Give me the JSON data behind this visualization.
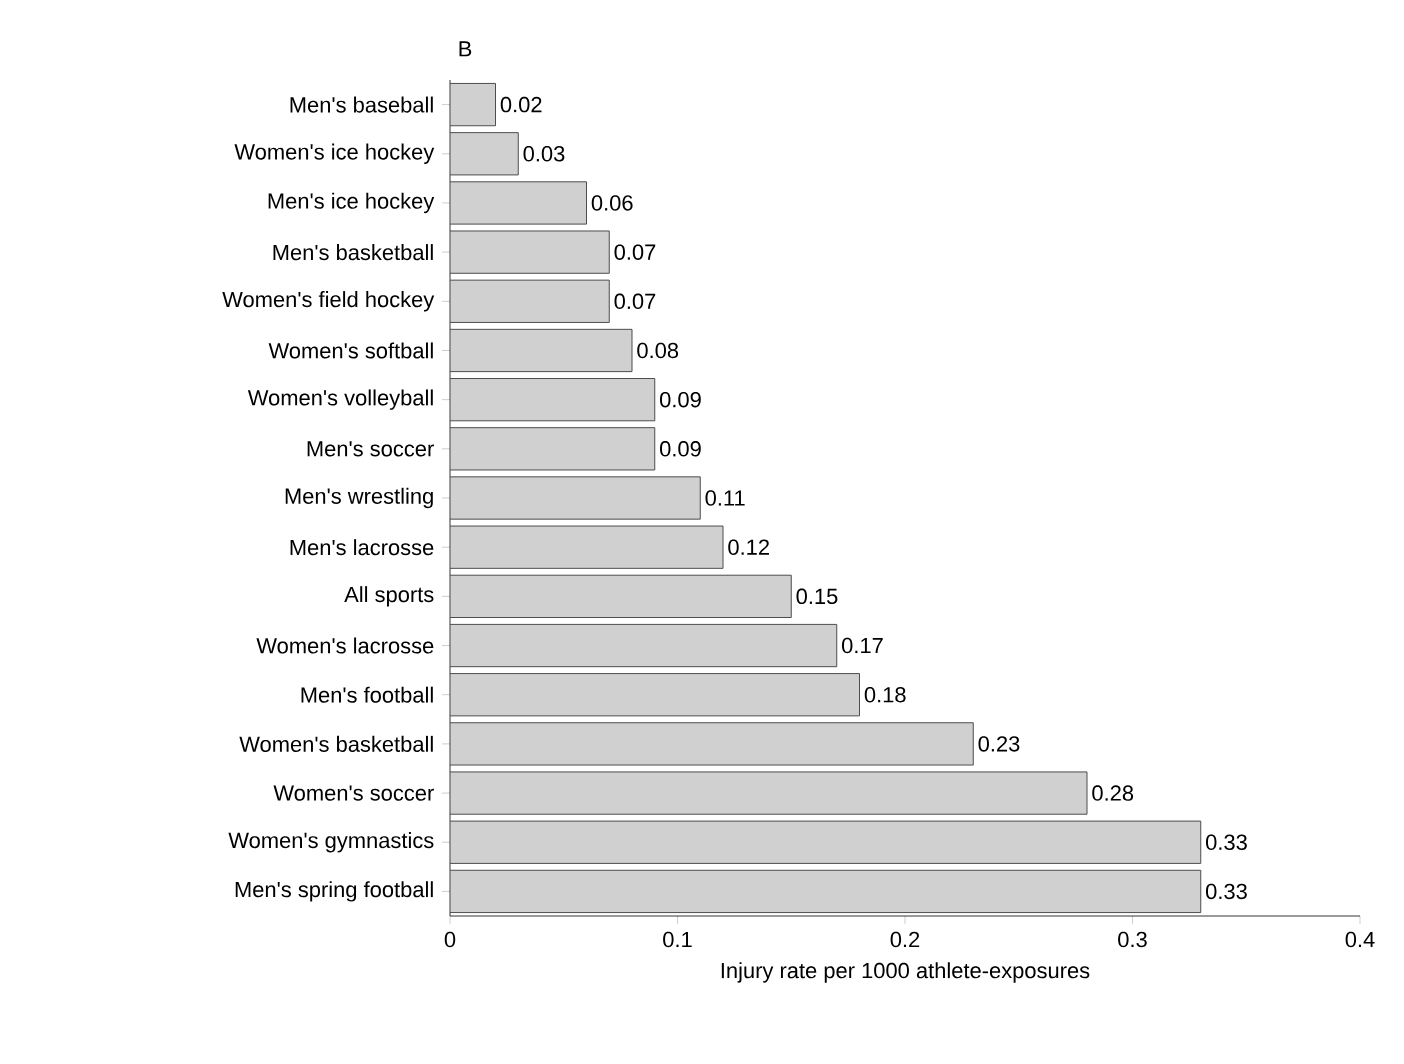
{
  "chart_data": {
    "type": "bar",
    "orientation": "horizontal",
    "title": "B",
    "categories": [
      "Men's baseball",
      "Women's ice hockey",
      "Men's ice hockey",
      "Men's basketball",
      "Women's field hockey",
      "Women's softball",
      "Women's volleyball",
      "Men's soccer",
      "Men's wrestling",
      "Men's lacrosse",
      "All sports",
      "Women's lacrosse",
      "Men's football",
      "Women's basketball",
      "Women's soccer",
      "Women's gymnastics",
      "Men's spring football"
    ],
    "values": [
      0.02,
      0.03,
      0.06,
      0.07,
      0.07,
      0.08,
      0.09,
      0.09,
      0.11,
      0.12,
      0.15,
      0.17,
      0.18,
      0.23,
      0.28,
      0.33,
      0.33
    ],
    "color": "#d0d0d0",
    "data_labels": true,
    "xlabel": "Injury rate per 1000 athlete-exposures",
    "xlim": [
      0,
      0.4
    ],
    "xticks": [
      0,
      0.1,
      0.2,
      0.3,
      0.4
    ]
  }
}
